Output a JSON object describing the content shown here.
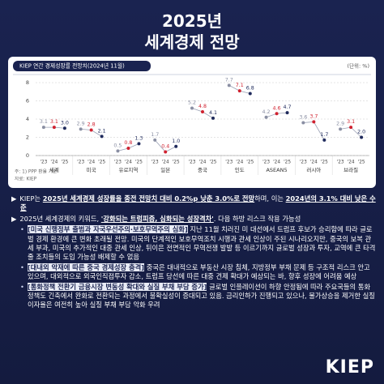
{
  "header": {
    "year": "2025년",
    "title": "세계경제 전망"
  },
  "chart_data": {
    "type": "line",
    "title": "KIEP 연간 경제성장률 전망치(2024년 11월)",
    "unit_note": "(단위: %)",
    "categories": [
      "세계",
      "미국",
      "유로지역",
      "일본",
      "중국",
      "인도",
      "ASEAN5",
      "러시아",
      "브라질"
    ],
    "periods": [
      "'23",
      "'24",
      "'25"
    ],
    "series": [
      {
        "color": "#8a8fa3",
        "values": [
          3.1,
          2.9,
          0.5,
          1.7,
          5.2,
          7.7,
          4.2,
          3.6,
          2.9
        ],
        "value_labels": [
          "3.1",
          "2.9",
          "0.5",
          "1.7",
          "5.2",
          "7.7",
          "4.2",
          "3.6",
          "2.9"
        ]
      },
      {
        "color": "#d0212f",
        "values": [
          3.1,
          2.8,
          0.8,
          0.4,
          4.8,
          7.1,
          4.6,
          3.7,
          3.1
        ],
        "value_labels": [
          "3.1",
          "2.8",
          "0.8",
          "0.4",
          "4.8",
          "7.1",
          "4.6",
          "3.7",
          "3.1"
        ]
      },
      {
        "color": "#1f2a5c",
        "values": [
          3.0,
          2.1,
          1.3,
          1.0,
          4.1,
          6.8,
          4.7,
          1.7,
          2.0
        ],
        "value_labels": [
          "3.0",
          "2.1",
          "1.3",
          "1.0",
          "4.1",
          "6.8",
          "4.7",
          "1.7",
          "2.0"
        ]
      }
    ],
    "ylim": [
      0,
      8
    ],
    "yticks": [
      0,
      2,
      4,
      6,
      8
    ],
    "grid": true,
    "notes": [
      "주: 1) PPP 환율 기준",
      "자료: KIEP"
    ]
  },
  "bullets": [
    {
      "marker": "▶",
      "level": 1,
      "segments": [
        {
          "text": "KIEP는 "
        },
        {
          "text": "2025년 세계경제 성장률을 종전 전망치 대비 0.2%p 낮춘 3.0%로 전망",
          "style": "bold"
        },
        {
          "text": "하며, 이는 "
        },
        {
          "text": "2024년의 3.1% 대비 낮은 수준",
          "style": "bold"
        }
      ]
    },
    {
      "marker": "▶",
      "level": 1,
      "segments": [
        {
          "text": "2025년 세계경제의 키워드, "
        },
        {
          "text": "'강화되는 트럼피즘, 심화되는 성장격차'",
          "style": "bold"
        },
        {
          "text": ". 다음 하방 리스크 작용 가능성"
        }
      ]
    },
    {
      "marker": "•",
      "level": 2,
      "segments": [
        {
          "text": "[미국 신행정부 출범과 자국우선주의·보호무역주의 심화]",
          "style": "tag"
        },
        {
          "text": " 지난 11월 치러진 미 대선에서 트럼프 후보가 승리함에 따라 글로벌 경제 환경에 큰 변화 초래될 전망. 미국의 단계적인 보호무역조치 시행과 관세 인상이 주된 시나리오지만, 중국의 보복 관세 부과, 미국의 추가적인 대중 관세 인상, 뒤이은 전면적인 무역전쟁 발발 등 이르기까지 글로벌 성장과 투자, 교역에 큰 타격 줄 조치들의 도입 가능성 배제할 수 없음"
        }
      ]
    },
    {
      "marker": "•",
      "level": 2,
      "segments": [
        {
          "text": "[대내외 악재에 따른 중국 경제성장 충격]",
          "style": "tag"
        },
        {
          "text": " 중국은 대내적으로 부동산 시장 침체, 지방정부 부채 문제 등 구조적 리스크 안고 있으며, 대외적으로 외국인직접투자 감소, 트럼프 당선에 따른 대중 견제 확대가 예상되는 바, 향후 성장에 어려움 예상"
        }
      ]
    },
    {
      "marker": "•",
      "level": 2,
      "segments": [
        {
          "text": "[통화정책 전환기 금융시장 변동성 확대와 실질 부채 부담 증가]",
          "style": "tag"
        },
        {
          "text": " 글로벌 인플레이션이 하향 안정됨에 따라 주요국들의 통화정책도 긴축에서 완화로 전환되는 과정에서 불확실성이 증대되고 있음. 금리인하가 진행되고 있으나, 물가상승을 제거한 실질 이자율은 여전히 높아 실질 부채 부담 악화 우려"
        }
      ]
    }
  ],
  "logo": "KIEP"
}
